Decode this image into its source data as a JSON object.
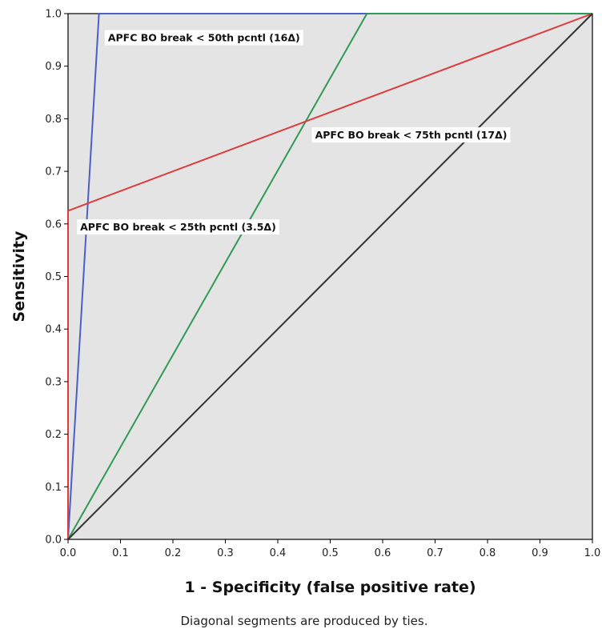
{
  "chart_data": {
    "type": "line",
    "xlabel": "1 - Specificity (false positive rate)",
    "ylabel": "Sensitivity",
    "footnote": "Diagonal segments are produced by ties.",
    "xlim": [
      0,
      1
    ],
    "ylim": [
      0,
      1
    ],
    "x_ticks": [
      "0.0",
      "0.1",
      "0.2",
      "0.3",
      "0.4",
      "0.5",
      "0.6",
      "0.7",
      "0.8",
      "0.9",
      "1.0"
    ],
    "y_ticks": [
      "0.0",
      "0.1",
      "0.2",
      "0.3",
      "0.4",
      "0.5",
      "0.6",
      "0.7",
      "0.8",
      "0.9",
      "1.0"
    ],
    "grid": false,
    "background_color": "#e4e4e4",
    "series": [
      {
        "name": "APFC BO break < 50th pcntl (16Δ)",
        "color": "#4a5fc4",
        "points": [
          [
            0,
            0
          ],
          [
            0.059,
            1.0
          ],
          [
            1.0,
            1.0
          ]
        ]
      },
      {
        "name": "APFC BO break < 75th pcntl (17Δ)",
        "color": "#2e9a55",
        "points": [
          [
            0,
            0
          ],
          [
            0.57,
            1.0
          ],
          [
            1.0,
            1.0
          ]
        ]
      },
      {
        "name": "APFC BO break < 25th pcntl (3.5Δ)",
        "color": "#dd3c3c",
        "points": [
          [
            0,
            0
          ],
          [
            0,
            0.625
          ],
          [
            1.0,
            1.0
          ]
        ]
      },
      {
        "name": "",
        "color": "#333333",
        "points": [
          [
            0,
            0
          ],
          [
            1.0,
            1.0
          ]
        ]
      }
    ],
    "annotations": [
      {
        "text": "APFC BO break < 50th pcntl (16Δ)",
        "x": 0.07,
        "y": 0.955
      },
      {
        "text": "APFC BO break < 75th pcntl (17Δ)",
        "x": 0.465,
        "y": 0.77
      },
      {
        "text": "APFC BO break < 25th pcntl (3.5Δ)",
        "x": 0.017,
        "y": 0.595
      }
    ]
  }
}
